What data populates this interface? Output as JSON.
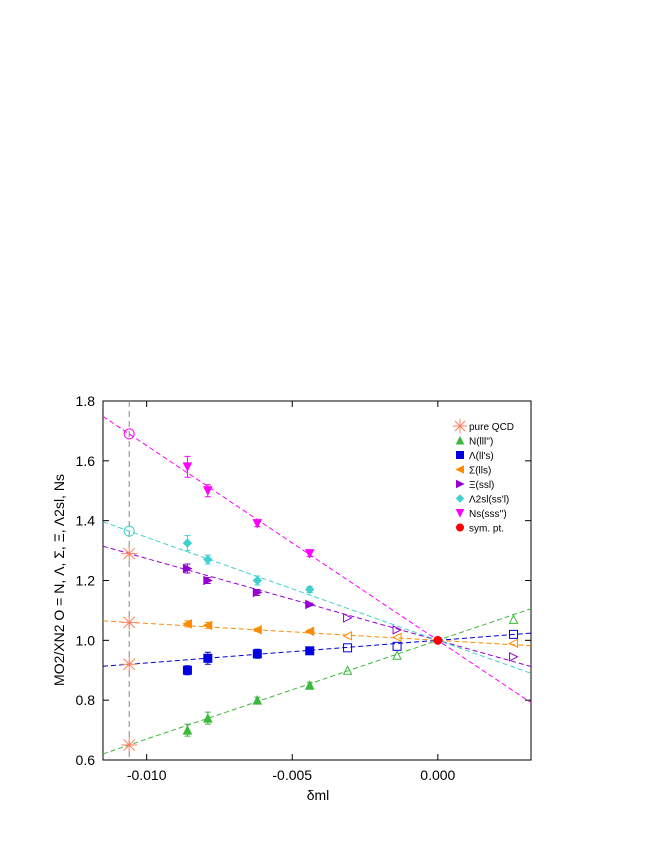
{
  "chart_data": {
    "type": "scatter",
    "xlabel": "δml",
    "ylabel": "MO2/XN2  O = N, Λ, Σ, Ξ, Λ2sl, Ns",
    "xlim": [
      -0.0115,
      0.0032
    ],
    "ylim": [
      0.6,
      1.8
    ],
    "xticks": [
      {
        "value": -0.01,
        "label": "-0.010"
      },
      {
        "value": -0.005,
        "label": "-0.005"
      },
      {
        "value": 0,
        "label": "0.000"
      }
    ],
    "yticks": [
      {
        "value": 0.6,
        "label": "0.6"
      },
      {
        "value": 0.8,
        "label": "0.8"
      },
      {
        "value": 1,
        "label": "1.0"
      },
      {
        "value": 1.2,
        "label": "1.2"
      },
      {
        "value": 1.4,
        "label": "1.4"
      },
      {
        "value": 1.6,
        "label": "1.6"
      },
      {
        "value": 1.8,
        "label": "1.8"
      }
    ],
    "x": [
      -0.0086,
      -0.0079,
      -0.0062,
      -0.0044,
      -0.0031,
      -0.0014,
      0.0026
    ],
    "hollow": [
      false,
      false,
      false,
      false,
      true,
      true,
      true
    ],
    "qcd_x": -0.0106,
    "pure_qcd": {
      "name": "pure QCD",
      "color": "#ff7f60"
    },
    "series": [
      {
        "name": "N(lll'')",
        "color": "#3cb83c",
        "marker": "up",
        "values": [
          0.7,
          0.74,
          0.8,
          0.85,
          0.9,
          0.95,
          1.07
        ],
        "errors": [
          0.02,
          0.02,
          0.01,
          0.01,
          null,
          null,
          null
        ],
        "qcd": 0.65,
        "qcd_marker": "star"
      },
      {
        "name": "Λ(ll's)",
        "color": "#0000e0",
        "marker": "square",
        "values": [
          0.9,
          0.94,
          0.955,
          0.965,
          0.975,
          0.98,
          1.02
        ],
        "errors": [
          0.015,
          0.02,
          0.015,
          0.01,
          null,
          null,
          null
        ],
        "qcd": 0.92,
        "qcd_marker": "star"
      },
      {
        "name": "Σ(lls)",
        "color": "#ff8c00",
        "marker": "left",
        "values": [
          1.055,
          1.05,
          1.035,
          1.03,
          1.015,
          1.01,
          0.99
        ],
        "errors": [
          0.01,
          0.01,
          0.005,
          0.005,
          null,
          null,
          null
        ],
        "qcd": 1.06,
        "qcd_marker": "star"
      },
      {
        "name": "Ξ(ssl)",
        "color": "#9400d3",
        "marker": "right",
        "values": [
          1.24,
          1.2,
          1.16,
          1.12,
          1.075,
          1.035,
          0.945
        ],
        "errors": [
          0.015,
          0.01,
          0.01,
          0.005,
          null,
          null,
          null
        ],
        "qcd": 1.29,
        "qcd_marker": "star"
      },
      {
        "name": "Λ2sl(ss'l)",
        "color": "#40d0d0",
        "marker": "diamond",
        "values": [
          1.325,
          1.27,
          1.2,
          1.17,
          null,
          null,
          null
        ],
        "errors": [
          0.025,
          0.015,
          0.015,
          0.01,
          null,
          null,
          null
        ],
        "qcd": 1.365,
        "qcd_marker": "circle"
      },
      {
        "name": "Ns(sss'')",
        "color": "#ff00ff",
        "marker": "down",
        "values": [
          1.58,
          1.5,
          1.39,
          1.29,
          null,
          null,
          null
        ],
        "errors": [
          0.035,
          0.02,
          0.01,
          0.01,
          null,
          null,
          null
        ],
        "qcd": 1.69,
        "qcd_marker": "circle"
      }
    ],
    "sym_point": {
      "name": "sym. pt.",
      "x": 0,
      "y": 1.0,
      "color": "#ff0000"
    }
  }
}
